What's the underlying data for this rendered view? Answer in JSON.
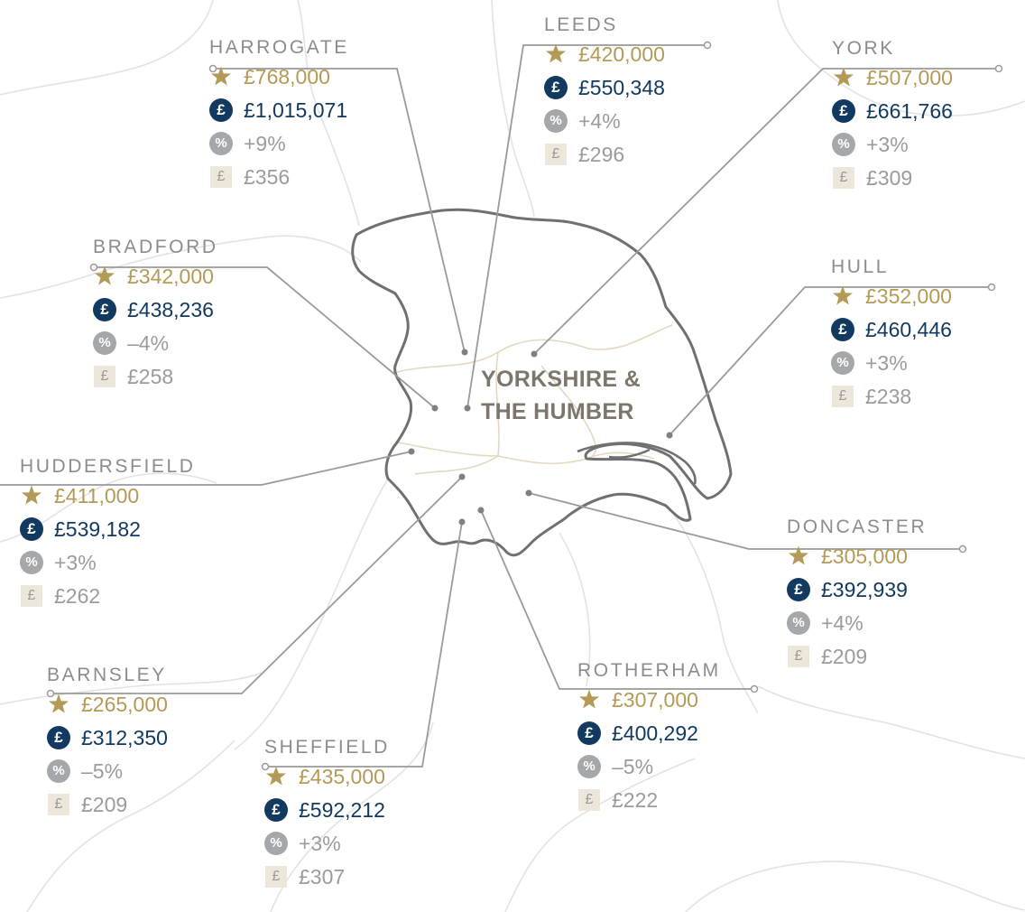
{
  "region": {
    "line1": "YORKSHIRE &",
    "line2": "THE HUMBER"
  },
  "colors": {
    "star": "#b39a56",
    "navy": "#123a60",
    "grey": "#9b9b9b",
    "tile": "#ece7da",
    "leader": "#9a9a9a"
  },
  "icons": {
    "star": "star-icon",
    "pound": "pound-circle-icon",
    "percent": "percent-circle-icon",
    "price_sqft": "pound-square-icon"
  },
  "cities": [
    {
      "id": "harrogate",
      "name": "HARROGATE",
      "star_price": "£768,000",
      "pound_price": "£1,015,071",
      "change": "+9%",
      "price_sqft": "£356"
    },
    {
      "id": "leeds",
      "name": "LEEDS",
      "star_price": "£420,000",
      "pound_price": "£550,348",
      "change": "+4%",
      "price_sqft": "£296"
    },
    {
      "id": "york",
      "name": "YORK",
      "star_price": "£507,000",
      "pound_price": "£661,766",
      "change": "+3%",
      "price_sqft": "£309"
    },
    {
      "id": "bradford",
      "name": "BRADFORD",
      "star_price": "£342,000",
      "pound_price": "£438,236",
      "change": "–4%",
      "price_sqft": "£258"
    },
    {
      "id": "hull",
      "name": "HULL",
      "star_price": "£352,000",
      "pound_price": "£460,446",
      "change": "+3%",
      "price_sqft": "£238"
    },
    {
      "id": "huddersfield",
      "name": "HUDDERSFIELD",
      "star_price": "£411,000",
      "pound_price": "£539,182",
      "change": "+3%",
      "price_sqft": "£262"
    },
    {
      "id": "doncaster",
      "name": "DONCASTER",
      "star_price": "£305,000",
      "pound_price": "£392,939",
      "change": "+4%",
      "price_sqft": "£209"
    },
    {
      "id": "barnsley",
      "name": "BARNSLEY",
      "star_price": "£265,000",
      "pound_price": "£312,350",
      "change": "–5%",
      "price_sqft": "£209"
    },
    {
      "id": "rotherham",
      "name": "ROTHERHAM",
      "star_price": "£307,000",
      "pound_price": "£400,292",
      "change": "–5%",
      "price_sqft": "£222"
    },
    {
      "id": "sheffield",
      "name": "SHEFFIELD",
      "star_price": "£435,000",
      "pound_price": "£592,212",
      "change": "+3%",
      "price_sqft": "£307"
    }
  ]
}
